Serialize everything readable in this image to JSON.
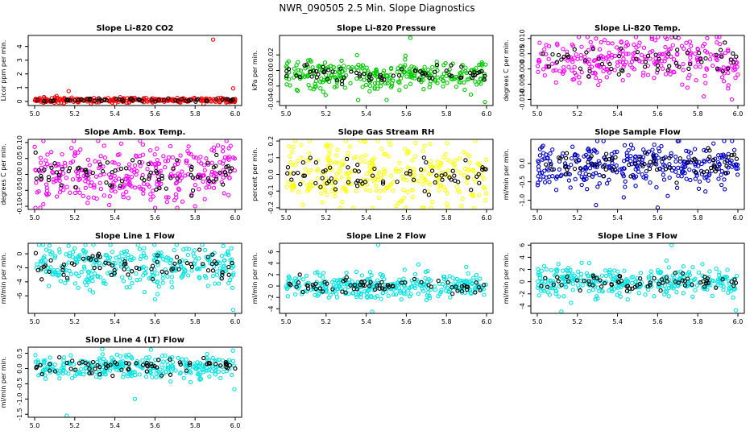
{
  "figure": {
    "title": "NWR_090505  2.5 Min. Slope Diagnostics"
  },
  "chart_data": [
    {
      "type": "scatter",
      "title": "Slope Li-820 CO2",
      "ylabel": "Licor ppm per min.",
      "color": "#ff0000",
      "xlim": [
        5.0,
        6.0
      ],
      "ylim": [
        -0.3,
        4.8
      ],
      "xticks": [
        5.0,
        5.2,
        5.4,
        5.6,
        5.8,
        6.0
      ],
      "xtick_labels": [
        "5.0",
        "5.2",
        "5.4",
        "5.6",
        "5.8",
        "6.0"
      ],
      "yticks": [
        0,
        1,
        2,
        3,
        4
      ],
      "ytick_labels": [
        "0",
        "1",
        "2",
        "3",
        "4"
      ],
      "center": 0.1,
      "spread": 0.09,
      "n_colored": 260,
      "n_black": 60,
      "outliers": [
        {
          "x": 5.89,
          "y": 4.5
        },
        {
          "x": 5.99,
          "y": 0.95
        },
        {
          "x": 5.17,
          "y": 0.75
        }
      ]
    },
    {
      "type": "scatter",
      "title": "Slope Li-820 Pressure",
      "ylabel": "kPa per min.",
      "color": "#00cc00",
      "xlim": [
        5.0,
        6.0
      ],
      "ylim": [
        -0.045,
        0.045
      ],
      "xticks": [
        5.0,
        5.2,
        5.4,
        5.6,
        5.8,
        6.0
      ],
      "xtick_labels": [
        "5.0",
        "5.2",
        "5.4",
        "5.6",
        "5.8",
        "6.0"
      ],
      "yticks": [
        -0.04,
        -0.02,
        0.0,
        0.02
      ],
      "ytick_labels": [
        "-0.04",
        "-0.02",
        "0.00",
        "0.02"
      ],
      "center": -0.005,
      "spread": 0.01,
      "n_colored": 300,
      "n_black": 70,
      "outliers": [
        {
          "x": 5.62,
          "y": 0.042
        },
        {
          "x": 5.36,
          "y": -0.038
        }
      ]
    },
    {
      "type": "scatter",
      "title": "Slope Li-820 Temp.",
      "ylabel": "degrees C per min.",
      "color": "#ff00ff",
      "xlim": [
        5.0,
        6.0
      ],
      "ylim": [
        -0.012,
        0.011
      ],
      "xticks": [
        5.0,
        5.2,
        5.4,
        5.6,
        5.8,
        6.0
      ],
      "xtick_labels": [
        "5.0",
        "5.2",
        "5.4",
        "5.6",
        "5.8",
        "6.0"
      ],
      "yticks": [
        -0.01,
        -0.005,
        0.0,
        0.005,
        0.01
      ],
      "ytick_labels": [
        "-0.010",
        "-0.005",
        "0.000",
        "0.005",
        "0.010"
      ],
      "center": 0.003,
      "spread": 0.004,
      "n_colored": 280,
      "n_black": 60,
      "outliers": [
        {
          "x": 5.83,
          "y": -0.009
        },
        {
          "x": 5.97,
          "y": -0.01
        }
      ]
    },
    {
      "type": "scatter",
      "title": "Slope Amb. Box Temp.",
      "ylabel": "degrees C per min.",
      "color": "#ff00ff",
      "xlim": [
        5.0,
        6.0
      ],
      "ylim": [
        -0.11,
        0.11
      ],
      "xticks": [
        5.0,
        5.2,
        5.4,
        5.6,
        5.8,
        6.0
      ],
      "xtick_labels": [
        "5.0",
        "5.2",
        "5.4",
        "5.6",
        "5.8",
        "6.0"
      ],
      "yticks": [
        -0.1,
        -0.05,
        0.0,
        0.05,
        0.1
      ],
      "ytick_labels": [
        "-0.10",
        "-0.05",
        "0.00",
        "0.05",
        "0.10"
      ],
      "center": 0.005,
      "spread": 0.05,
      "n_colored": 320,
      "n_black": 80,
      "outliers": [
        {
          "x": 5.8,
          "y": -0.1
        }
      ]
    },
    {
      "type": "scatter",
      "title": "Slope Gas Stream RH",
      "ylabel": "percent per min.",
      "color": "#ffff00",
      "xlim": [
        5.0,
        6.0
      ],
      "ylim": [
        -0.21,
        0.21
      ],
      "xticks": [
        5.0,
        5.2,
        5.4,
        5.6,
        5.8,
        6.0
      ],
      "xtick_labels": [
        "5.0",
        "5.2",
        "5.4",
        "5.6",
        "5.8",
        "6.0"
      ],
      "yticks": [
        -0.2,
        -0.1,
        0.0,
        0.1,
        0.2
      ],
      "ytick_labels": [
        "-0.2",
        "-0.1",
        "0.0",
        "0.1",
        "0.2"
      ],
      "center": 0.0,
      "spread": 0.09,
      "n_colored": 320,
      "n_black": 70,
      "outliers": []
    },
    {
      "type": "scatter",
      "title": "Slope Sample Flow",
      "ylabel": "ml/min per min.",
      "color": "#0000cc",
      "xlim": [
        5.0,
        6.0
      ],
      "ylim": [
        -1.25,
        0.65
      ],
      "xticks": [
        5.0,
        5.2,
        5.4,
        5.6,
        5.8,
        6.0
      ],
      "xtick_labels": [
        "5.0",
        "5.2",
        "5.4",
        "5.6",
        "5.8",
        "6.0"
      ],
      "yticks": [
        -1.0,
        -0.5,
        0.0
      ],
      "ytick_labels": [
        "-1.0",
        "-0.5",
        "0.0"
      ],
      "center": -0.05,
      "spread": 0.3,
      "n_colored": 320,
      "n_black": 70,
      "outliers": [
        {
          "x": 5.7,
          "y": 0.6
        },
        {
          "x": 5.6,
          "y": -1.2
        }
      ]
    },
    {
      "type": "scatter",
      "title": "Slope Line 1 Flow",
      "ylabel": "ml/min per min.",
      "color": "#00e5e5",
      "xlim": [
        5.0,
        6.0
      ],
      "ylim": [
        -8.5,
        1.5
      ],
      "xticks": [
        5.0,
        5.2,
        5.4,
        5.6,
        5.8,
        6.0
      ],
      "xtick_labels": [
        "5.0",
        "5.2",
        "5.4",
        "5.6",
        "5.8",
        "6.0"
      ],
      "yticks": [
        -6,
        -4,
        -2,
        0
      ],
      "ytick_labels": [
        "-6",
        "-4",
        "-2",
        "0"
      ],
      "center": -1.8,
      "spread": 1.6,
      "n_colored": 320,
      "n_black": 70,
      "outliers": [
        {
          "x": 5.99,
          "y": -8.0
        },
        {
          "x": 5.6,
          "y": -6.5
        }
      ]
    },
    {
      "type": "scatter",
      "title": "Slope Line 2 Flow",
      "ylabel": "ml/min per min.",
      "color": "#00e5e5",
      "xlim": [
        5.0,
        6.0
      ],
      "ylim": [
        -4.8,
        7.5
      ],
      "xticks": [
        5.0,
        5.2,
        5.4,
        5.6,
        5.8,
        6.0
      ],
      "xtick_labels": [
        "5.0",
        "5.2",
        "5.4",
        "5.6",
        "5.8",
        "6.0"
      ],
      "yticks": [
        -4,
        -2,
        0,
        2,
        4,
        6
      ],
      "ytick_labels": [
        "-4",
        "-2",
        "0",
        "2",
        "4",
        "6"
      ],
      "center": 0.0,
      "spread": 1.1,
      "n_colored": 320,
      "n_black": 70,
      "outliers": [
        {
          "x": 5.46,
          "y": 7.2
        },
        {
          "x": 5.43,
          "y": -4.5
        },
        {
          "x": 5.66,
          "y": 3.8
        }
      ]
    },
    {
      "type": "scatter",
      "title": "Slope Line 3 Flow",
      "ylabel": "ml/min per min.",
      "color": "#00e5e5",
      "xlim": [
        5.0,
        6.0
      ],
      "ylim": [
        -5.2,
        6.3
      ],
      "xticks": [
        5.0,
        5.2,
        5.4,
        5.6,
        5.8,
        6.0
      ],
      "xtick_labels": [
        "5.0",
        "5.2",
        "5.4",
        "5.6",
        "5.8",
        "6.0"
      ],
      "yticks": [
        -4,
        -2,
        0,
        2,
        4,
        6
      ],
      "ytick_labels": [
        "-4",
        "-2",
        "0",
        "2",
        "4",
        "6"
      ],
      "center": 0.0,
      "spread": 1.2,
      "n_colored": 320,
      "n_black": 70,
      "outliers": [
        {
          "x": 5.67,
          "y": 6.0
        },
        {
          "x": 5.12,
          "y": -4.9
        },
        {
          "x": 5.99,
          "y": -4.7
        }
      ]
    },
    {
      "type": "scatter",
      "title": "Slope Line 4 (LT) Flow",
      "ylabel": "ml/min per min.",
      "color": "#00e5e5",
      "xlim": [
        5.0,
        6.0
      ],
      "ylim": [
        -1.6,
        0.7
      ],
      "xticks": [
        5.0,
        5.2,
        5.4,
        5.6,
        5.8,
        6.0
      ],
      "xtick_labels": [
        "5.0",
        "5.2",
        "5.4",
        "5.6",
        "5.8",
        "6.0"
      ],
      "yticks": [
        -1.5,
        -1.0,
        -0.5,
        0.0,
        0.5
      ],
      "ytick_labels": [
        "-1.5",
        "-1.0",
        "-0.5",
        "0.0",
        "0.5"
      ],
      "center": 0.05,
      "spread": 0.2,
      "n_colored": 300,
      "n_black": 70,
      "outliers": [
        {
          "x": 5.5,
          "y": -1.0
        },
        {
          "x": 5.16,
          "y": -1.55
        },
        {
          "x": 5.58,
          "y": 0.62
        }
      ]
    }
  ]
}
